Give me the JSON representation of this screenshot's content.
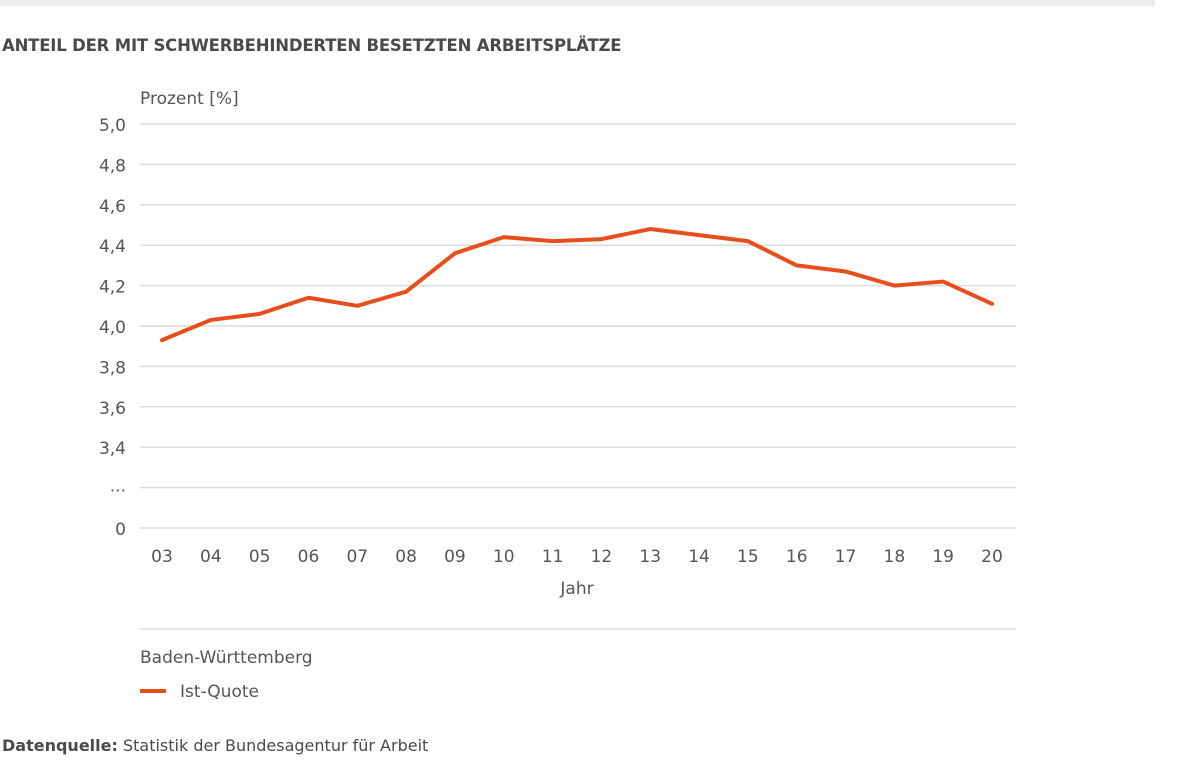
{
  "title": "ANTEIL DER MIT SCHWERBEHINDERTEN BESETZTEN ARBEITSPLÄTZE",
  "source_label": "Datenquelle:",
  "source_text": " Statistik der Bundesagentur für Arbeit",
  "chart_data": {
    "type": "line",
    "title": "ANTEIL DER MIT SCHWERBEHINDERTEN BESETZTEN ARBEITSPLÄTZE",
    "ylabel": "Prozent [%]",
    "xlabel": "Jahr",
    "ylim": [
      3.4,
      5.0
    ],
    "axis_break": true,
    "y_ticks": [
      "5,0",
      "4,8",
      "4,6",
      "4,4",
      "4,2",
      "4,0",
      "3,8",
      "3,6",
      "3,4",
      "...",
      "0"
    ],
    "y_tick_values": [
      5.0,
      4.8,
      4.6,
      4.4,
      4.2,
      4.0,
      3.8,
      3.6,
      3.4
    ],
    "categories": [
      "03",
      "04",
      "05",
      "06",
      "07",
      "08",
      "09",
      "10",
      "11",
      "12",
      "13",
      "14",
      "15",
      "16",
      "17",
      "18",
      "19",
      "20"
    ],
    "grid": true,
    "legend_title": "Baden-Württemberg",
    "legend_placement": "bottom-left",
    "series": [
      {
        "name": "Ist-Quote",
        "color": "#e84e1b",
        "values": [
          3.93,
          4.03,
          4.06,
          4.14,
          4.1,
          4.17,
          4.36,
          4.44,
          4.42,
          4.43,
          4.48,
          4.45,
          4.42,
          4.3,
          4.27,
          4.2,
          4.22,
          4.11
        ]
      }
    ]
  }
}
